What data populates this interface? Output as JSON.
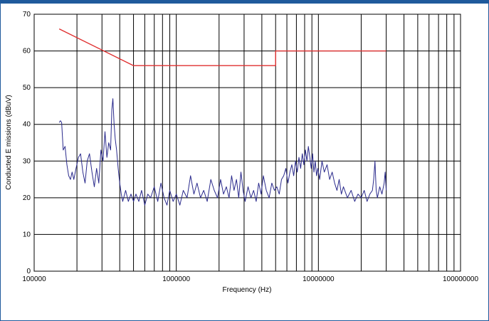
{
  "chart_data": {
    "type": "line",
    "title": "",
    "xlabel": "Frequency (Hz)",
    "ylabel": "Conducted E missions (dBuV)",
    "x_scale": "log",
    "xlim": [
      100000,
      100000000
    ],
    "ylim": [
      0,
      70
    ],
    "grid": true,
    "x_ticks": [
      {
        "value": 100000,
        "label": "100000"
      },
      {
        "value": 1000000,
        "label": "1000000"
      },
      {
        "value": 10000000,
        "label": "10000000"
      },
      {
        "value": 100000000,
        "label": "100000000"
      }
    ],
    "y_ticks": [
      0,
      10,
      20,
      30,
      40,
      50,
      60,
      70
    ],
    "series": [
      {
        "color": "#e03030",
        "points": [
          [
            150000,
            66
          ],
          [
            500000,
            56
          ],
          [
            5000000,
            56
          ],
          [
            5000000,
            60
          ],
          [
            30000000,
            60
          ]
        ]
      },
      {
        "color": "#2a2a8c",
        "points": [
          [
            150000,
            40.5
          ],
          [
            153000,
            41
          ],
          [
            156000,
            40.5
          ],
          [
            160000,
            33
          ],
          [
            165000,
            34
          ],
          [
            170000,
            29
          ],
          [
            175000,
            26
          ],
          [
            180000,
            25
          ],
          [
            185000,
            27
          ],
          [
            190000,
            25
          ],
          [
            197000,
            28
          ],
          [
            205000,
            31
          ],
          [
            212000,
            32
          ],
          [
            220000,
            27
          ],
          [
            228000,
            24
          ],
          [
            236000,
            30
          ],
          [
            245000,
            32
          ],
          [
            255000,
            27
          ],
          [
            265000,
            23
          ],
          [
            275000,
            28
          ],
          [
            285000,
            24
          ],
          [
            295000,
            33
          ],
          [
            305000,
            30
          ],
          [
            315000,
            38
          ],
          [
            325000,
            31
          ],
          [
            335000,
            35
          ],
          [
            345000,
            33
          ],
          [
            352000,
            44
          ],
          [
            358000,
            47
          ],
          [
            365000,
            40
          ],
          [
            372000,
            36
          ],
          [
            380000,
            33
          ],
          [
            390000,
            28
          ],
          [
            400000,
            24
          ],
          [
            410000,
            21
          ],
          [
            420000,
            19
          ],
          [
            440000,
            22
          ],
          [
            460000,
            19
          ],
          [
            480000,
            21
          ],
          [
            500000,
            19
          ],
          [
            520000,
            21
          ],
          [
            545000,
            19
          ],
          [
            570000,
            22
          ],
          [
            600000,
            18
          ],
          [
            630000,
            21
          ],
          [
            660000,
            20
          ],
          [
            700000,
            23
          ],
          [
            740000,
            19
          ],
          [
            780000,
            24
          ],
          [
            820000,
            20
          ],
          [
            860000,
            18
          ],
          [
            900000,
            22
          ],
          [
            950000,
            19
          ],
          [
            1000000,
            21
          ],
          [
            1060000,
            18
          ],
          [
            1120000,
            22
          ],
          [
            1190000,
            20
          ],
          [
            1260000,
            26
          ],
          [
            1330000,
            21
          ],
          [
            1400000,
            24
          ],
          [
            1480000,
            20
          ],
          [
            1560000,
            22
          ],
          [
            1650000,
            19
          ],
          [
            1750000,
            25
          ],
          [
            1850000,
            22
          ],
          [
            1950000,
            20
          ],
          [
            2050000,
            25
          ],
          [
            2150000,
            21
          ],
          [
            2250000,
            23
          ],
          [
            2350000,
            20
          ],
          [
            2450000,
            26
          ],
          [
            2550000,
            22
          ],
          [
            2650000,
            25
          ],
          [
            2750000,
            20
          ],
          [
            2850000,
            27
          ],
          [
            2950000,
            22
          ],
          [
            3050000,
            19
          ],
          [
            3200000,
            23
          ],
          [
            3350000,
            20
          ],
          [
            3500000,
            22
          ],
          [
            3650000,
            19
          ],
          [
            3800000,
            24
          ],
          [
            3950000,
            21
          ],
          [
            4100000,
            26
          ],
          [
            4300000,
            22
          ],
          [
            4500000,
            20
          ],
          [
            4700000,
            24
          ],
          [
            4900000,
            22
          ],
          [
            5100000,
            23
          ],
          [
            5300000,
            21
          ],
          [
            5500000,
            25
          ],
          [
            5700000,
            26
          ],
          [
            5900000,
            28
          ],
          [
            6100000,
            24
          ],
          [
            6300000,
            27
          ],
          [
            6500000,
            29
          ],
          [
            6700000,
            26
          ],
          [
            6900000,
            30
          ],
          [
            7100000,
            27
          ],
          [
            7300000,
            31
          ],
          [
            7500000,
            28
          ],
          [
            7700000,
            32
          ],
          [
            7900000,
            29
          ],
          [
            8100000,
            33
          ],
          [
            8300000,
            30
          ],
          [
            8500000,
            34
          ],
          [
            8700000,
            31
          ],
          [
            8900000,
            28
          ],
          [
            9100000,
            32
          ],
          [
            9300000,
            27
          ],
          [
            9500000,
            30
          ],
          [
            9700000,
            26
          ],
          [
            9900000,
            28
          ],
          [
            10200000,
            25
          ],
          [
            10600000,
            30
          ],
          [
            11000000,
            27
          ],
          [
            11500000,
            29
          ],
          [
            12000000,
            25
          ],
          [
            12500000,
            27
          ],
          [
            13000000,
            24
          ],
          [
            13500000,
            22
          ],
          [
            14000000,
            25
          ],
          [
            14500000,
            21
          ],
          [
            15000000,
            23
          ],
          [
            16000000,
            20
          ],
          [
            17000000,
            22
          ],
          [
            18000000,
            19
          ],
          [
            19000000,
            21
          ],
          [
            20000000,
            20
          ],
          [
            21000000,
            22
          ],
          [
            22000000,
            19
          ],
          [
            23000000,
            21
          ],
          [
            24000000,
            22
          ],
          [
            24500000,
            25
          ],
          [
            25000000,
            30
          ],
          [
            25500000,
            22
          ],
          [
            26000000,
            20
          ],
          [
            27000000,
            23
          ],
          [
            28000000,
            21
          ],
          [
            29000000,
            24
          ],
          [
            29500000,
            27
          ],
          [
            30000000,
            22
          ]
        ]
      }
    ]
  }
}
